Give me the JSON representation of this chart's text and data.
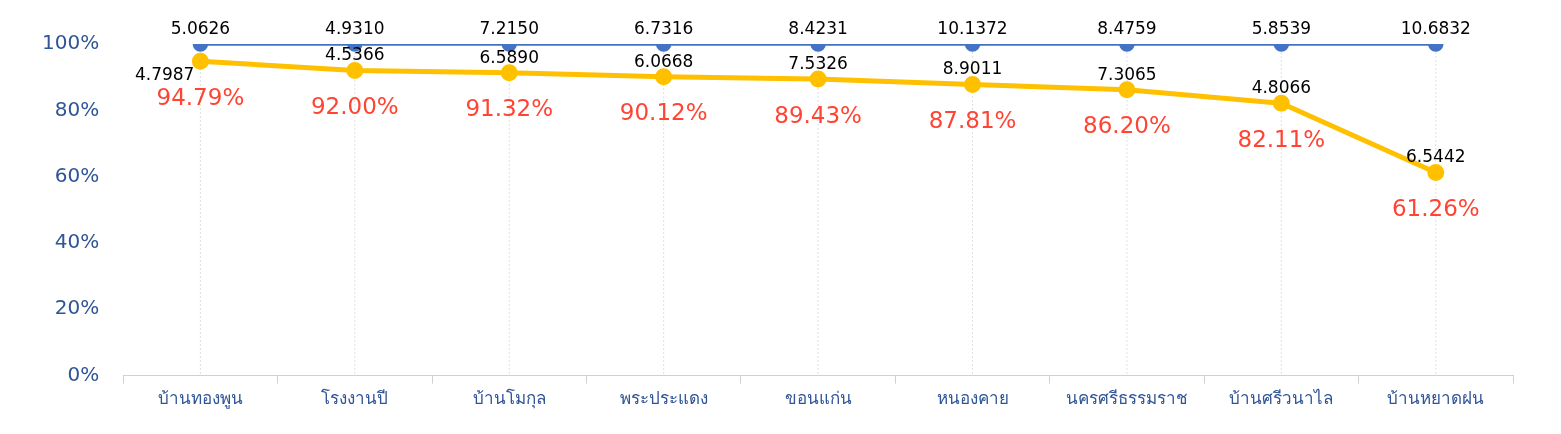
{
  "chart_data": {
    "type": "line",
    "categories": [
      "บ้านทองพูน",
      "โรงงานปี",
      "บ้านโมกุล",
      "พระประแดง",
      "ขอนแก่น",
      "หนองคาย",
      "นครศรีธรรมราช",
      "บ้านศรีวนาไล",
      "บ้านหยาดฝน"
    ],
    "series": [
      {
        "color": "#4472c4",
        "values": [
          100,
          100,
          100,
          100,
          100,
          100,
          100,
          100,
          100
        ]
      },
      {
        "color": "#ffc000",
        "values": [
          94.79,
          92.0,
          91.32,
          90.12,
          89.43,
          87.81,
          86.2,
          82.11,
          61.26
        ],
        "value_labels": [
          "94.79%",
          "92.00%",
          "91.32%",
          "90.12%",
          "89.43%",
          "87.81%",
          "86.20%",
          "82.11%",
          "61.26%"
        ]
      }
    ],
    "annotations": [
      {
        "text": "5.0626",
        "x": "บ้านทองพูน",
        "y": 100
      },
      {
        "text": "4.9310",
        "x": "โรงงานปี",
        "y": 100
      },
      {
        "text": "7.2150",
        "x": "บ้านโมกุล",
        "y": 100
      },
      {
        "text": "6.7316",
        "x": "พระประแดง",
        "y": 100
      },
      {
        "text": "8.4231",
        "x": "ขอนแก่น",
        "y": 100
      },
      {
        "text": "10.1372",
        "x": "หนองคาย",
        "y": 100
      },
      {
        "text": "8.4759",
        "x": "นครศรีธรรมราช",
        "y": 100
      },
      {
        "text": "5.8539",
        "x": "บ้านศรีวนาไล",
        "y": 100
      },
      {
        "text": "10.6832",
        "x": "บ้านหยาดฝน",
        "y": 100
      },
      {
        "text": "4.7987",
        "x": "บ้านทองพูน",
        "y": 94.79
      },
      {
        "text": "4.5366",
        "x": "โรงงานปี",
        "y": 92.0
      },
      {
        "text": "6.5890",
        "x": "บ้านโมกุล",
        "y": 91.32
      },
      {
        "text": "6.0668",
        "x": "พระประแดง",
        "y": 90.12
      },
      {
        "text": "7.5326",
        "x": "ขอนแก่น",
        "y": 89.43
      },
      {
        "text": "8.9011",
        "x": "หนองคาย",
        "y": 87.81
      },
      {
        "text": "7.3065",
        "x": "นครศรีธรรมราช",
        "y": 86.2
      },
      {
        "text": "4.8066",
        "x": "บ้านศรีวนาไล",
        "y": 82.11
      },
      {
        "text": "6.5442",
        "x": "บ้านหยาดฝน",
        "y": 61.26
      }
    ],
    "ylim": [
      0,
      100
    ],
    "yticks": [
      {
        "value": 0,
        "label": "0%"
      },
      {
        "value": 20,
        "label": "20%"
      },
      {
        "value": 40,
        "label": "40%"
      },
      {
        "value": 60,
        "label": "60%"
      },
      {
        "value": 80,
        "label": "80%"
      },
      {
        "value": 100,
        "label": "100%"
      }
    ],
    "grid": "x",
    "marker": "circle",
    "legend": false
  }
}
